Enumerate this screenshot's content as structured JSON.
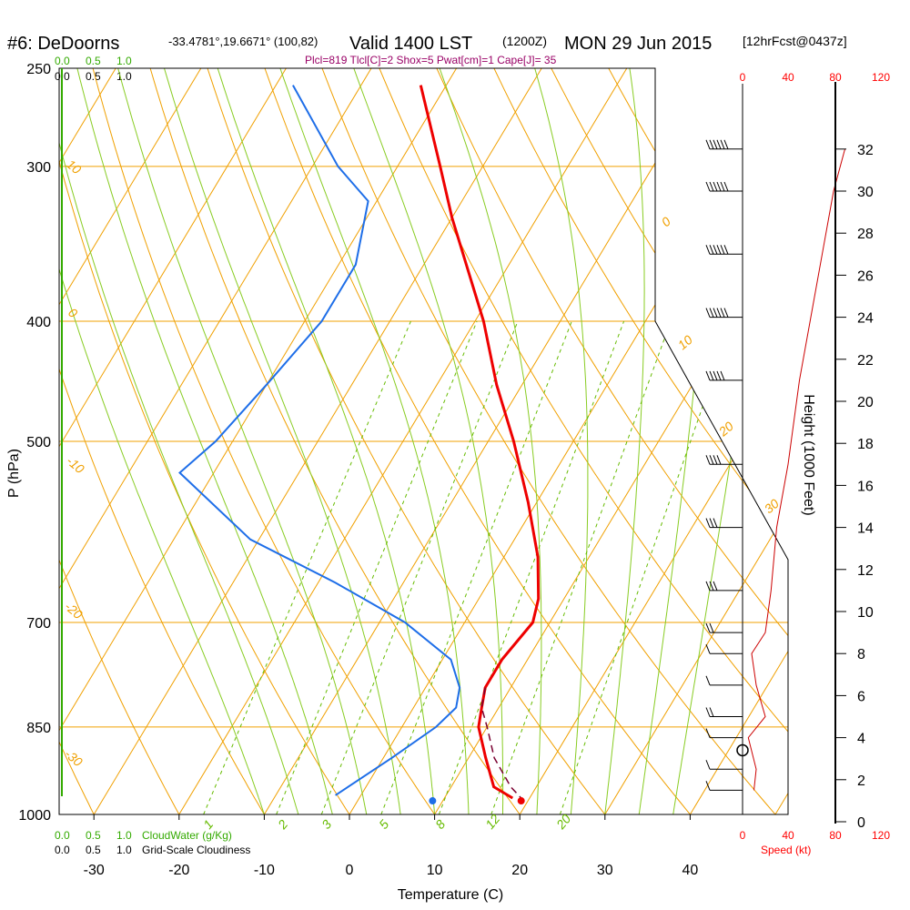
{
  "header": {
    "station": "#6: DeDoorns",
    "coords": "-33.4781°,19.6671° (100,82)",
    "valid_main": "Valid 1400 LST",
    "valid_utc": "(1200Z)",
    "date": "MON 29 Jun 2015",
    "forecast": "[12hrFcst@0437z]",
    "params": "Plcl=819 Tlcl[C]=2 Shox=5 Pwat[cm]=1 Cape[J]= 35"
  },
  "cloud_scale": {
    "top_green": [
      "0.0",
      "0.5",
      "1.0"
    ],
    "top_black": [
      "0.0",
      "0.5",
      "1.0"
    ],
    "bottom_green": [
      "0.0",
      "0.5",
      "1.0"
    ],
    "bottom_green_label": "CloudWater (g/Kg)",
    "bottom_black": [
      "0.0",
      "0.5",
      "1.0"
    ],
    "bottom_black_label": "Grid-Scale Cloudiness"
  },
  "colors": {
    "temperature": "#ee0000",
    "dewpoint": "#1e6ee8",
    "parcel": "#7a0030",
    "isotherm": "#f0a000",
    "dry_adiabat": "#f0a000",
    "moist_adiabat": "#88cc22",
    "mixing_ratio": "#66bb00",
    "height_curve": "#cc0000",
    "params_text": "#990066"
  },
  "chart_data": {
    "type": "line",
    "subtype": "skew-t log-p sounding",
    "xlabel": "Temperature (C)",
    "ylabel": "P (hPa)",
    "x_ticks": [
      -30,
      -20,
      -10,
      0,
      10,
      20,
      30,
      40
    ],
    "y_ticks": [
      250,
      300,
      400,
      500,
      700,
      850,
      1000
    ],
    "pressure_levels": [
      250,
      300,
      400,
      500,
      700,
      850,
      1000
    ],
    "series": [
      {
        "key": "temperature",
        "pressure": [
          258,
          300,
          330,
          400,
          450,
          500,
          560,
          620,
          670,
          700,
          750,
          790,
          820,
          850,
          900,
          950,
          970
        ],
        "values": [
          -43,
          -35,
          -30,
          -19,
          -13,
          -7,
          -1,
          4,
          7,
          8,
          7,
          7,
          8,
          9,
          12,
          15,
          18
        ]
      },
      {
        "key": "dewpoint",
        "pressure": [
          258,
          300,
          320,
          360,
          400,
          450,
          500,
          530,
          600,
          650,
          700,
          750,
          790,
          820,
          850,
          900,
          965
        ],
        "values": [
          -58,
          -47,
          -41,
          -38,
          -38,
          -40,
          -42,
          -44,
          -31,
          -18,
          -7,
          1,
          4,
          5,
          4,
          1,
          -3
        ]
      },
      {
        "key": "parcel",
        "pressure": [
          790,
          820,
          850,
          900,
          950,
          970
        ],
        "values": [
          7,
          8,
          10,
          13,
          17,
          19
        ]
      }
    ],
    "surface_temperature_marker": {
      "pressure": 975,
      "value": 19.2
    },
    "surface_dewpoint_marker": {
      "pressure": 975,
      "value": 8.8
    },
    "isotherm_labels": [
      "0",
      "10",
      "20",
      "30"
    ],
    "dry_adiabat_labels": [
      "10",
      "0",
      "-10",
      "-20",
      "-30"
    ],
    "mixing_ratio_labels": [
      "1",
      "2",
      "3",
      "5",
      "8",
      "12",
      "20"
    ],
    "wind_speed_axis": {
      "label": "Speed (kt)",
      "ticks": [
        "0",
        "40",
        "80",
        "120"
      ]
    },
    "height_axis": {
      "label": "Height (1000 Feet)",
      "ticks": [
        "0",
        "2",
        "4",
        "6",
        "8",
        "10",
        "12",
        "14",
        "16",
        "18",
        "20",
        "22",
        "24",
        "26",
        "28",
        "30",
        "32"
      ]
    },
    "wind_profile": [
      {
        "height_kft": 1.5,
        "speed_kt": 10
      },
      {
        "height_kft": 2.5,
        "speed_kt": 12
      },
      {
        "height_kft": 4.0,
        "speed_kt": 5
      },
      {
        "height_kft": 5.0,
        "speed_kt": 20
      },
      {
        "height_kft": 6.5,
        "speed_kt": 12
      },
      {
        "height_kft": 8.0,
        "speed_kt": 8
      },
      {
        "height_kft": 9.0,
        "speed_kt": 20
      },
      {
        "height_kft": 11.0,
        "speed_kt": 25
      },
      {
        "height_kft": 14.0,
        "speed_kt": 30
      },
      {
        "height_kft": 17.0,
        "speed_kt": 40
      },
      {
        "height_kft": 21.0,
        "speed_kt": 50
      },
      {
        "height_kft": 24.0,
        "speed_kt": 60
      },
      {
        "height_kft": 27.0,
        "speed_kt": 70
      },
      {
        "height_kft": 30.0,
        "speed_kt": 80
      },
      {
        "height_kft": 32.0,
        "speed_kt": 90
      }
    ]
  }
}
